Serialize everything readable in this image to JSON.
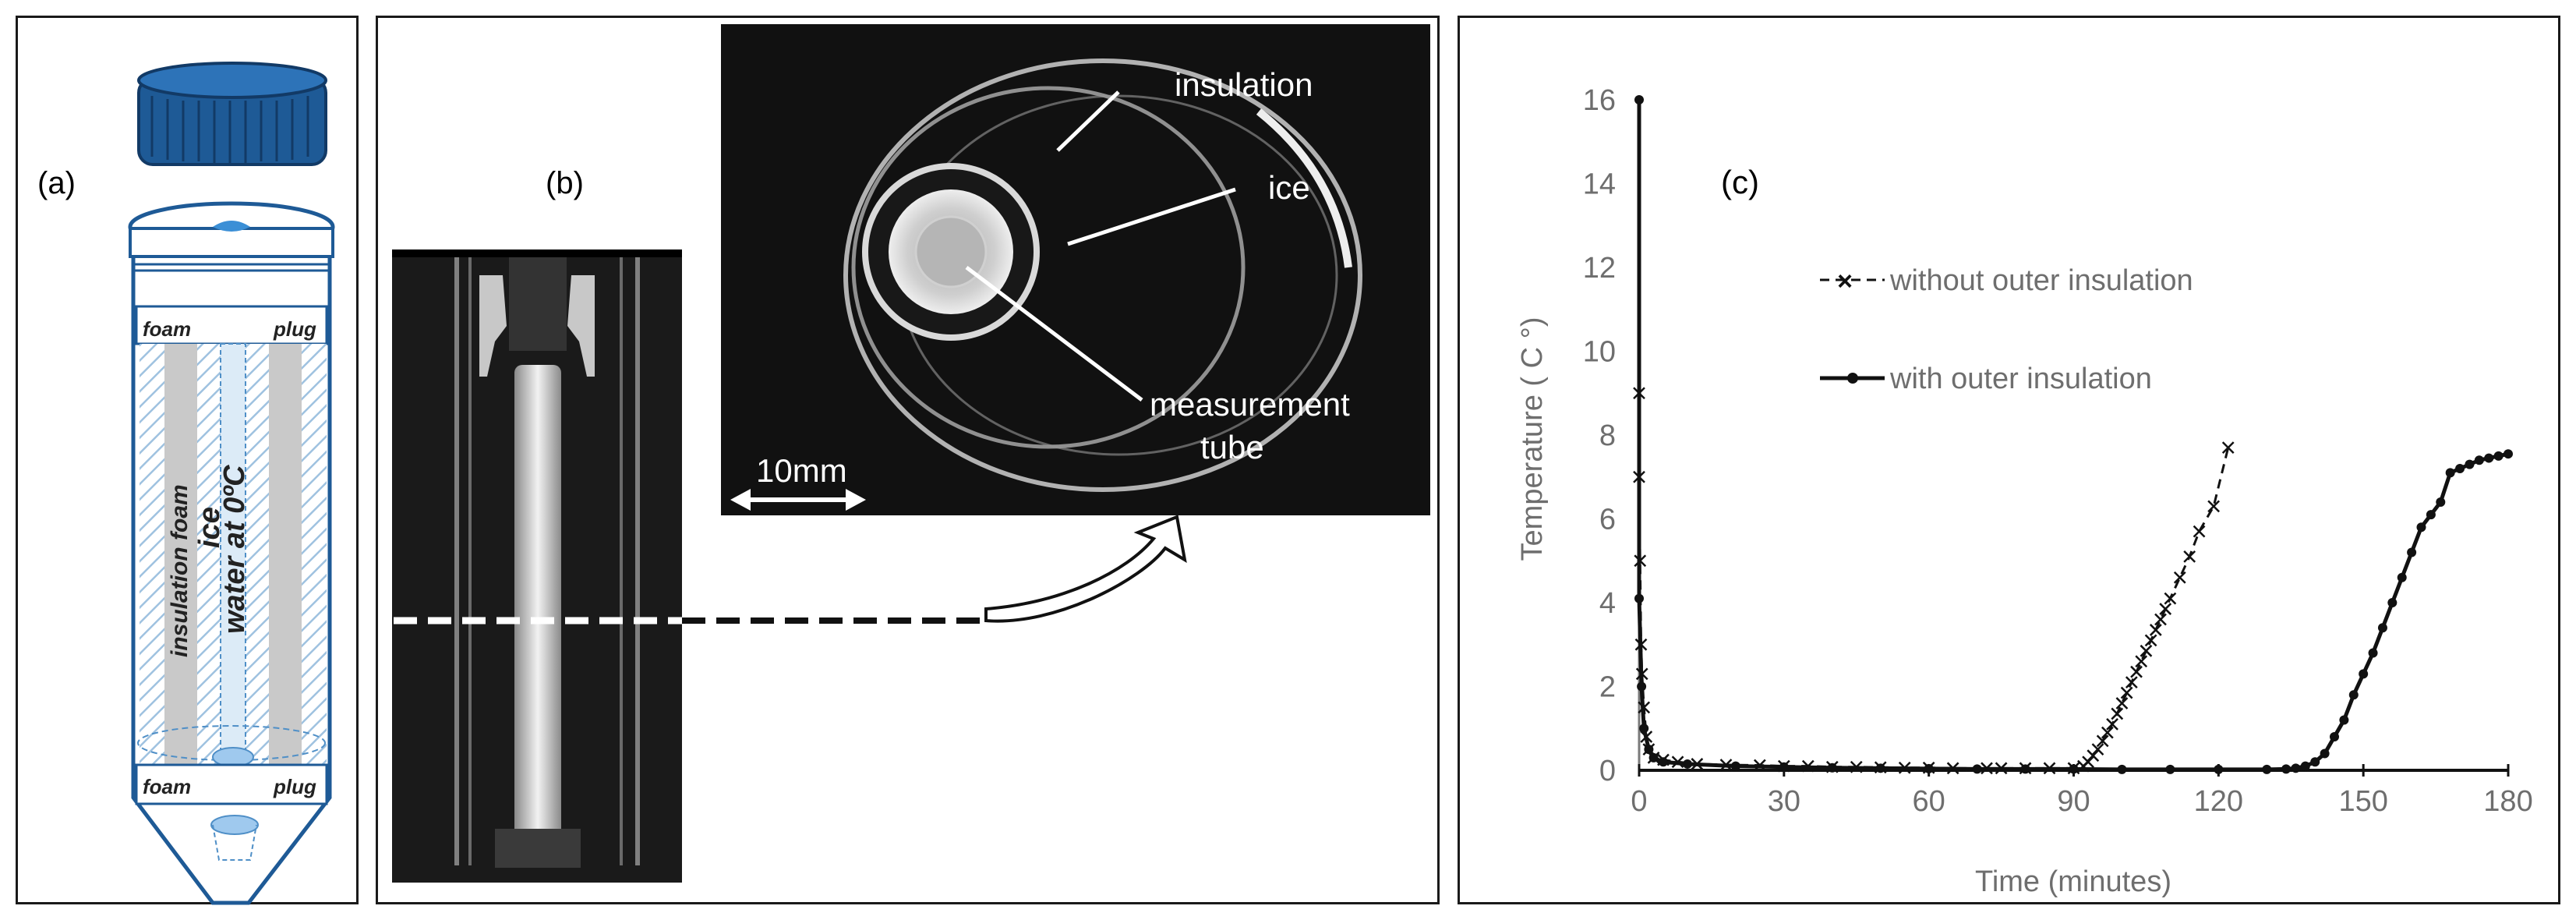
{
  "panel_a": {
    "label": "(a)",
    "foam_word": "foam",
    "plug_word": "plug",
    "insulation_foam": "insulation foam",
    "ice": "ice",
    "water": "water at 0ºC"
  },
  "panel_b": {
    "label": "(b)",
    "insulation": "insulation",
    "ice": "ice",
    "measurement": "measurement",
    "tube": "tube",
    "scale": "10mm"
  },
  "panel_c": {
    "label": "(c)",
    "chart_data": {
      "type": "line",
      "xlabel": "Time (minutes)",
      "ylabel": "Temperature  ( C °)",
      "xlim": [
        0,
        180
      ],
      "ylim": [
        0,
        16
      ],
      "xticks": [
        "0",
        "30",
        "60",
        "90",
        "120",
        "150",
        "180"
      ],
      "yticks": [
        "0",
        "2",
        "4",
        "6",
        "8",
        "10",
        "12",
        "14",
        "16"
      ],
      "grid": false,
      "legend_placement": "top-center",
      "series": [
        {
          "name": "without outer insulation",
          "style": "dashed-x",
          "points": [
            [
              0,
              9
            ],
            [
              0,
              7
            ],
            [
              0.2,
              5
            ],
            [
              0.4,
              3
            ],
            [
              0.6,
              2.3
            ],
            [
              1,
              1.5
            ],
            [
              1.5,
              0.8
            ],
            [
              2,
              0.5
            ],
            [
              3,
              0.3
            ],
            [
              5,
              0.25
            ],
            [
              8,
              0.2
            ],
            [
              12,
              0.15
            ],
            [
              18,
              0.13
            ],
            [
              25,
              0.12
            ],
            [
              30,
              0.1
            ],
            [
              35,
              0.1
            ],
            [
              40,
              0.08
            ],
            [
              45,
              0.08
            ],
            [
              50,
              0.07
            ],
            [
              55,
              0.06
            ],
            [
              60,
              0.06
            ],
            [
              65,
              0.05
            ],
            [
              72,
              0.05
            ],
            [
              75,
              0.05
            ],
            [
              80,
              0.05
            ],
            [
              85,
              0.05
            ],
            [
              90,
              0.05
            ],
            [
              92,
              0.1
            ],
            [
              93,
              0.2
            ],
            [
              94,
              0.35
            ],
            [
              95,
              0.5
            ],
            [
              96,
              0.7
            ],
            [
              97,
              0.9
            ],
            [
              98,
              1.1
            ],
            [
              99,
              1.35
            ],
            [
              100,
              1.6
            ],
            [
              101,
              1.85
            ],
            [
              102,
              2.1
            ],
            [
              103,
              2.35
            ],
            [
              104,
              2.6
            ],
            [
              105,
              2.85
            ],
            [
              106,
              3.1
            ],
            [
              107,
              3.35
            ],
            [
              108,
              3.6
            ],
            [
              109,
              3.85
            ],
            [
              110,
              4.1
            ],
            [
              112,
              4.6
            ],
            [
              114,
              5.1
            ],
            [
              116,
              5.7
            ],
            [
              119,
              6.3
            ],
            [
              122,
              7.7
            ]
          ]
        },
        {
          "name": "with outer insulation",
          "style": "solid-dot",
          "points": [
            [
              0,
              16
            ],
            [
              0,
              4.1
            ],
            [
              0.5,
              2
            ],
            [
              1,
              1
            ],
            [
              2,
              0.5
            ],
            [
              3,
              0.3
            ],
            [
              5,
              0.2
            ],
            [
              10,
              0.15
            ],
            [
              20,
              0.1
            ],
            [
              30,
              0.08
            ],
            [
              40,
              0.06
            ],
            [
              50,
              0.05
            ],
            [
              60,
              0.04
            ],
            [
              70,
              0.03
            ],
            [
              80,
              0.03
            ],
            [
              90,
              0.03
            ],
            [
              100,
              0.02
            ],
            [
              110,
              0.02
            ],
            [
              120,
              0.02
            ],
            [
              130,
              0.02
            ],
            [
              134,
              0.03
            ],
            [
              136,
              0.05
            ],
            [
              138,
              0.1
            ],
            [
              140,
              0.2
            ],
            [
              142,
              0.4
            ],
            [
              144,
              0.8
            ],
            [
              146,
              1.2
            ],
            [
              148,
              1.8
            ],
            [
              150,
              2.3
            ],
            [
              152,
              2.8
            ],
            [
              154,
              3.4
            ],
            [
              156,
              4
            ],
            [
              158,
              4.6
            ],
            [
              160,
              5.2
            ],
            [
              162,
              5.8
            ],
            [
              164,
              6.1
            ],
            [
              166,
              6.4
            ],
            [
              168,
              7.1
            ],
            [
              170,
              7.2
            ],
            [
              172,
              7.3
            ],
            [
              174,
              7.4
            ],
            [
              176,
              7.45
            ],
            [
              178,
              7.5
            ],
            [
              180,
              7.55
            ]
          ]
        }
      ]
    }
  }
}
